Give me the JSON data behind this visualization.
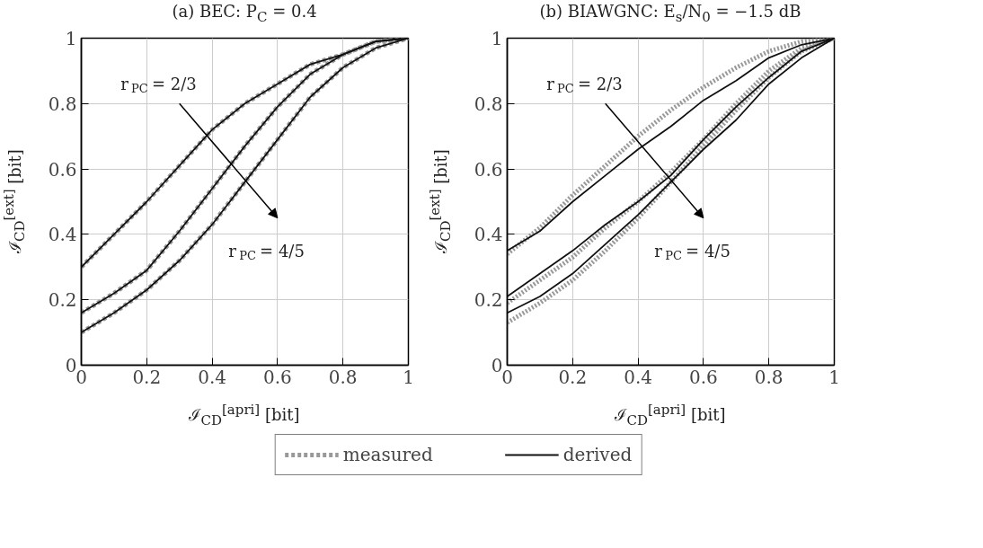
{
  "chart_data": [
    {
      "type": "line",
      "title": "(a) BEC: P$_{C}$ = 0.4",
      "xlabel": "ℐ$_{CD}$$^{[apri]}$ [bit]",
      "ylabel": "ℐ$_{CD}$$^{[ext]}$ [bit]",
      "x": [
        0,
        0.1,
        0.2,
        0.3,
        0.4,
        0.5,
        0.6,
        0.7,
        0.8,
        0.9,
        1
      ],
      "xlim": [
        0,
        1
      ],
      "ylim": [
        0,
        1
      ],
      "xticks": [
        0,
        0.2,
        0.4,
        0.6,
        0.8,
        1
      ],
      "yticks": [
        0,
        0.2,
        0.4,
        0.6,
        0.8,
        1
      ],
      "grid": true,
      "legend": "bottom",
      "annotations": [
        "r$_{PC}$ = 2/3",
        "r$_{PC}$ = 4/5"
      ],
      "series": [
        {
          "name": "measured",
          "color": "#999999",
          "line_style": "dashed",
          "values": [
            0.3,
            0.4,
            0.5,
            0.61,
            0.72,
            0.8,
            0.86,
            0.92,
            0.95,
            0.99,
            1
          ]
        },
        {
          "color": "#999999",
          "line_style": "dashed",
          "values": [
            0.16,
            0.22,
            0.29,
            0.41,
            0.54,
            0.67,
            0.79,
            0.89,
            0.95,
            0.99,
            1
          ]
        },
        {
          "color": "#999999",
          "line_style": "dashed",
          "values": [
            0.1,
            0.16,
            0.23,
            0.32,
            0.43,
            0.56,
            0.69,
            0.82,
            0.91,
            0.97,
            1
          ]
        },
        {
          "name": "derived",
          "color": "#111111",
          "line_style": "solid",
          "values": [
            0.3,
            0.4,
            0.5,
            0.61,
            0.72,
            0.8,
            0.86,
            0.92,
            0.95,
            0.99,
            1
          ]
        },
        {
          "color": "#111111",
          "line_style": "solid",
          "values": [
            0.16,
            0.22,
            0.29,
            0.41,
            0.54,
            0.67,
            0.79,
            0.89,
            0.95,
            0.99,
            1
          ]
        },
        {
          "color": "#111111",
          "line_style": "solid",
          "values": [
            0.1,
            0.16,
            0.23,
            0.32,
            0.43,
            0.56,
            0.69,
            0.82,
            0.91,
            0.97,
            1
          ]
        }
      ]
    },
    {
      "type": "line",
      "title": "(b) BIAWGNC: E$_{s}$/N$_{0}$ = −1.5 dB",
      "xlabel": "ℐ$_{CD}$$^{[apri]}$ [bit]",
      "ylabel": "ℐ$_{CD}$$^{[ext]}$ [bit]",
      "x": [
        0,
        0.1,
        0.2,
        0.3,
        0.4,
        0.5,
        0.6,
        0.7,
        0.8,
        0.9,
        1
      ],
      "xlim": [
        0,
        1
      ],
      "ylim": [
        0,
        1
      ],
      "xticks": [
        0,
        0.2,
        0.4,
        0.6,
        0.8,
        1
      ],
      "yticks": [
        0,
        0.2,
        0.4,
        0.6,
        0.8,
        1
      ],
      "grid": true,
      "annotations": [
        "r$_{PC}$ = 2/3",
        "r$_{PC}$ = 4/5"
      ],
      "series": [
        {
          "color": "#999999",
          "line_style": "dotted",
          "values": [
            0.34,
            0.42,
            0.52,
            0.61,
            0.7,
            0.78,
            0.85,
            0.91,
            0.96,
            0.99,
            1
          ]
        },
        {
          "color": "#999999",
          "line_style": "dotted",
          "values": [
            0.19,
            0.26,
            0.33,
            0.42,
            0.5,
            0.59,
            0.69,
            0.8,
            0.9,
            0.97,
            1
          ]
        },
        {
          "color": "#999999",
          "line_style": "dotted",
          "values": [
            0.13,
            0.19,
            0.26,
            0.35,
            0.45,
            0.56,
            0.67,
            0.78,
            0.88,
            0.96,
            1
          ]
        },
        {
          "color": "#111111",
          "line_style": "solid",
          "values": [
            0.35,
            0.41,
            0.5,
            0.58,
            0.66,
            0.73,
            0.81,
            0.87,
            0.94,
            0.98,
            1
          ]
        },
        {
          "color": "#111111",
          "line_style": "solid",
          "values": [
            0.21,
            0.28,
            0.35,
            0.43,
            0.5,
            0.58,
            0.69,
            0.79,
            0.88,
            0.96,
            1
          ]
        },
        {
          "color": "#111111",
          "line_style": "solid",
          "values": [
            0.16,
            0.21,
            0.28,
            0.37,
            0.46,
            0.56,
            0.66,
            0.75,
            0.86,
            0.94,
            1
          ]
        }
      ]
    }
  ]
}
